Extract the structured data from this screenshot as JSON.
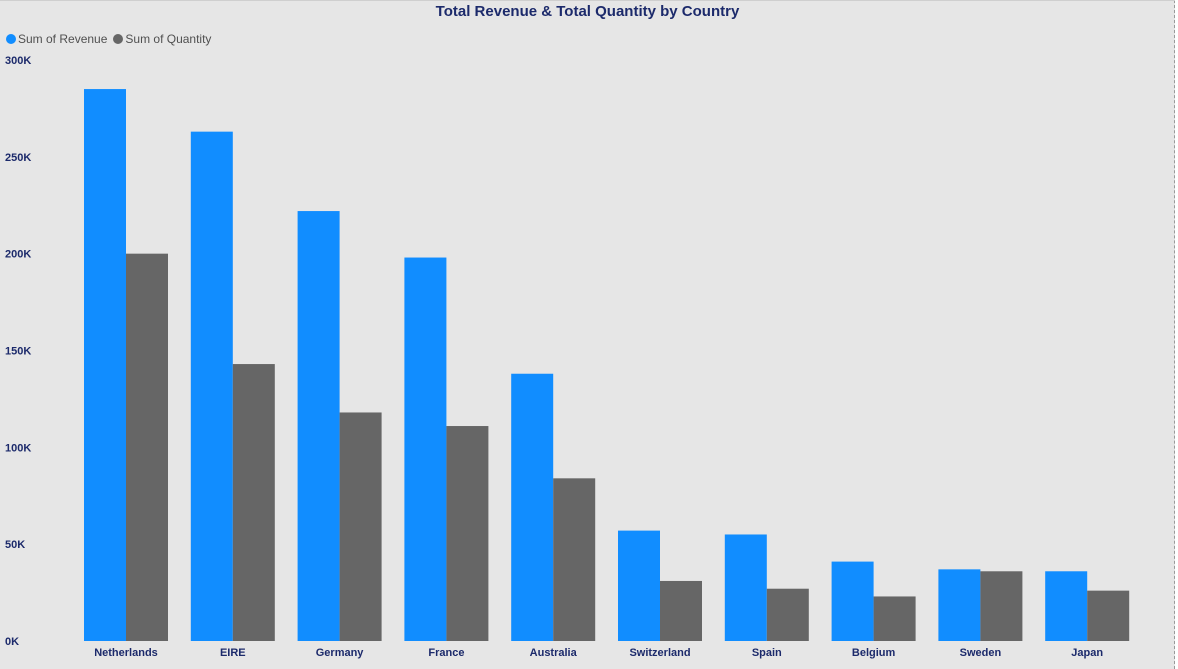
{
  "chart_data": {
    "type": "bar",
    "title": "Total Revenue & Total Quantity by Country",
    "categories": [
      "Netherlands",
      "EIRE",
      "Germany",
      "France",
      "Australia",
      "Switzerland",
      "Spain",
      "Belgium",
      "Sweden",
      "Japan"
    ],
    "series": [
      {
        "name": "Sum of Revenue",
        "color": "#118dff",
        "values": [
          285000,
          263000,
          222000,
          198000,
          138000,
          57000,
          55000,
          41000,
          37000,
          36000
        ]
      },
      {
        "name": "Sum of Quantity",
        "color": "#666666",
        "values": [
          200000,
          143000,
          118000,
          111000,
          84000,
          31000,
          27000,
          23000,
          36000,
          26000
        ]
      }
    ],
    "ylim": [
      0,
      300000
    ],
    "y_ticks": [
      0,
      50000,
      100000,
      150000,
      200000,
      250000,
      300000
    ],
    "y_tick_labels": [
      "0K",
      "50K",
      "100K",
      "150K",
      "200K",
      "250K",
      "300K"
    ],
    "xlabel": "",
    "ylabel": "",
    "grid": false,
    "legend_position": "top-left"
  }
}
